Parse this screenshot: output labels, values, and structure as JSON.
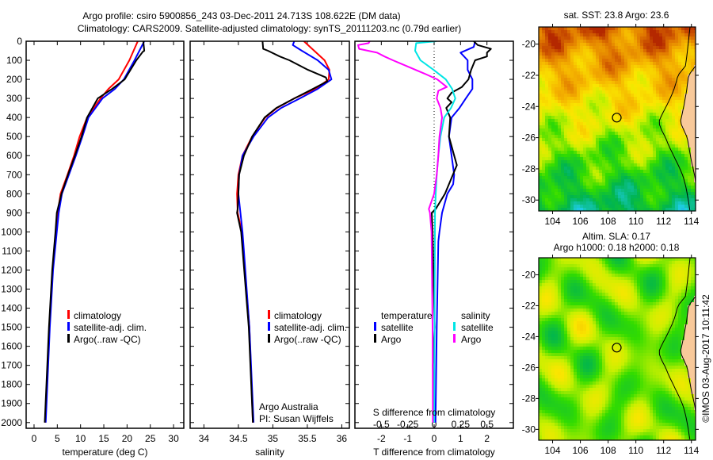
{
  "title": {
    "line1": "Argo profile: csiro 5900856_243 03-Dec-2011 24.713S 108.622E (DM data)",
    "line2": "Climatology: CARS2009. Satellite-adjusted climatology: synTS_20111203.nc (0.79d earlier)"
  },
  "colors": {
    "climatology": "#ff0000",
    "satellite": "#0000ff",
    "argo": "#000000",
    "sal_satellite": "#00e5e5",
    "sal_argo": "#ff00ff",
    "land": "#f8c99a"
  },
  "depth_axis": {
    "ticks": [
      0,
      100,
      200,
      300,
      400,
      500,
      600,
      700,
      800,
      900,
      1000,
      1100,
      1200,
      1300,
      1400,
      1500,
      1600,
      1700,
      1800,
      1900,
      2000
    ],
    "range": [
      0,
      2030
    ]
  },
  "chart_data": [
    {
      "type": "line",
      "name": "temperature",
      "xlabel": "temperature (deg C)",
      "ylabel": "depth",
      "xlim": [
        -1.7,
        32.2
      ],
      "ylim": [
        2030,
        0
      ],
      "xticks": [
        0,
        5,
        10,
        15,
        20,
        25,
        30
      ],
      "legend": {
        "climatology": "climatology",
        "satellite": "satellite-adj. clim.",
        "argo": "Argo(..raw -QC)"
      },
      "series": [
        {
          "name": "climatology",
          "color": "#ff0000",
          "depth": [
            0,
            100,
            200,
            250,
            300,
            400,
            500,
            600,
            700,
            800,
            900,
            1000,
            1200,
            1500,
            2000
          ],
          "values": [
            22.3,
            20.5,
            18.2,
            16.0,
            14.3,
            11.4,
            9.8,
            8.6,
            7.2,
            5.7,
            5.1,
            4.7,
            4.0,
            3.3,
            2.4
          ]
        },
        {
          "name": "satellite",
          "color": "#0000ff",
          "depth": [
            0,
            100,
            200,
            250,
            300,
            400,
            500,
            600,
            700,
            800,
            900,
            1000,
            1200,
            1500,
            2000
          ],
          "values": [
            23.7,
            21.6,
            19.3,
            17.4,
            14.7,
            11.7,
            10.4,
            9.0,
            7.5,
            6.0,
            5.3,
            4.9,
            4.1,
            3.4,
            2.5
          ]
        },
        {
          "name": "argo",
          "color": "#000000",
          "depth": [
            0,
            50,
            55,
            100,
            200,
            250,
            300,
            400,
            500,
            600,
            700,
            800,
            900,
            1000,
            1200,
            1500,
            2000
          ],
          "values": [
            23.5,
            23.7,
            23.4,
            22.0,
            19.5,
            16.8,
            13.7,
            11.4,
            10.2,
            8.8,
            7.3,
            5.9,
            4.9,
            4.6,
            3.9,
            3.2,
            2.3
          ]
        }
      ]
    },
    {
      "type": "line",
      "name": "salinity",
      "xlabel": "salinity",
      "ylabel": "depth",
      "xlim": [
        33.8,
        36.11
      ],
      "ylim": [
        2030,
        0
      ],
      "xticks": [
        34,
        34.5,
        35,
        35.5,
        36
      ],
      "legend": {
        "climatology": "climatology",
        "satellite": "satellite-adj. clim.",
        "argo": "Argo(..raw -QC)"
      },
      "credit": {
        "line1": "Argo Australia",
        "line2": "PI: Susan Wijffels"
      },
      "series": [
        {
          "name": "climatology",
          "color": "#ff0000",
          "depth": [
            0,
            100,
            150,
            200,
            250,
            300,
            350,
            400,
            500,
            600,
            700,
            800,
            900,
            1000,
            1500,
            2000
          ],
          "values": [
            35.45,
            35.75,
            35.82,
            35.81,
            35.62,
            35.31,
            35.06,
            34.89,
            34.7,
            34.56,
            34.5,
            34.48,
            34.49,
            34.55,
            34.66,
            34.71
          ]
        },
        {
          "name": "satellite",
          "color": "#0000ff",
          "depth": [
            0,
            20,
            50,
            100,
            150,
            200,
            250,
            300,
            350,
            400,
            500,
            600,
            700,
            800,
            900,
            1000,
            1100,
            1500,
            2000
          ],
          "values": [
            35.31,
            35.29,
            35.42,
            35.65,
            35.81,
            35.85,
            35.65,
            35.39,
            35.12,
            34.93,
            34.72,
            34.56,
            34.51,
            34.5,
            34.53,
            34.56,
            34.58,
            34.66,
            34.72
          ]
        },
        {
          "name": "argo",
          "color": "#000000",
          "depth": [
            0,
            40,
            50,
            80,
            100,
            150,
            190,
            210,
            250,
            300,
            350,
            400,
            500,
            600,
            700,
            800,
            880,
            900,
            950,
            1000,
            1500,
            2000
          ],
          "values": [
            34.85,
            34.86,
            34.93,
            35.1,
            35.24,
            35.51,
            35.77,
            35.79,
            35.58,
            35.31,
            35.05,
            34.88,
            34.7,
            34.58,
            34.51,
            34.5,
            34.49,
            34.48,
            34.51,
            34.54,
            34.65,
            34.71
          ]
        }
      ]
    },
    {
      "type": "line",
      "name": "difference",
      "xlabel": "T difference from climatology",
      "x2label": "S difference from climatology",
      "ylabel": "depth",
      "xlim": [
        -3,
        3
      ],
      "ylim": [
        2030,
        0
      ],
      "xticks": [
        -2,
        -1,
        0,
        1,
        2
      ],
      "x2ticks": [
        "-0.5",
        "-0.25",
        "0",
        "0.25",
        "0.5"
      ],
      "x2scale": 4,
      "legend": {
        "temperature": "temperature",
        "salinity": "salinity",
        "satellite": "satellite",
        "argo": "Argo"
      },
      "series": [
        {
          "name": "T satellite",
          "color": "#0000ff",
          "depth": [
            0,
            30,
            60,
            100,
            150,
            200,
            250,
            300,
            350,
            400,
            500,
            600,
            700,
            750,
            800,
            900,
            1000,
            1050,
            1500,
            2000
          ],
          "values": [
            1.55,
            1.5,
            1.0,
            1.27,
            1.27,
            1.45,
            1.45,
            1.2,
            0.96,
            0.66,
            0.56,
            0.66,
            0.76,
            0.72,
            0.5,
            0.3,
            0.2,
            0.16,
            0.1,
            0.05
          ]
        },
        {
          "name": "T Argo",
          "color": "#000000",
          "depth": [
            0,
            20,
            40,
            60,
            80,
            100,
            150,
            200,
            240,
            270,
            300,
            320,
            350,
            400,
            500,
            600,
            650,
            700,
            800,
            880,
            900,
            1000,
            1500,
            1700,
            2000
          ],
          "values": [
            1.5,
            1.65,
            2.15,
            2.0,
            2.0,
            1.55,
            1.4,
            1.3,
            1.05,
            0.66,
            0.5,
            0.66,
            0.46,
            0.61,
            0.56,
            0.76,
            0.86,
            0.71,
            0.41,
            0.06,
            -0.09,
            -0.06,
            0.02,
            -0.05,
            0.0
          ]
        },
        {
          "name": "S satellite",
          "color": "#00e5e5",
          "depth": [
            0,
            10,
            50,
            100,
            150,
            200,
            250,
            300,
            350,
            400,
            500,
            600,
            700,
            800,
            900,
            2000
          ],
          "values": [
            0.02,
            -0.17,
            -0.18,
            -0.13,
            -0.005,
            0.11,
            0.17,
            0.2,
            0.16,
            0.095,
            0.06,
            0.04,
            0.025,
            0.015,
            0.008,
            0.0
          ]
        },
        {
          "name": "S Argo",
          "color": "#ff00ff",
          "depth": [
            0,
            10,
            20,
            40,
            60,
            80,
            100,
            130,
            170,
            200,
            240,
            260,
            300,
            350,
            400,
            500,
            600,
            700,
            800,
            880,
            900,
            1000,
            1500,
            2000
          ],
          "values": [
            -0.61,
            -0.62,
            -0.72,
            -0.71,
            -0.54,
            -0.47,
            -0.39,
            -0.26,
            -0.09,
            0.03,
            0.12,
            0.04,
            0.025,
            0.06,
            0.075,
            0.05,
            0.04,
            0.025,
            0.0,
            -0.05,
            -0.04,
            -0.025,
            -0.015,
            -0.012
          ]
        }
      ]
    },
    {
      "type": "heatmap",
      "name": "sst-map",
      "title": "sat. SST: 23.8 Argo: 23.6",
      "lon_range": [
        103,
        114.3
      ],
      "lat_range": [
        -30.7,
        -18.9
      ],
      "xticks": [
        104,
        106,
        108,
        110,
        112,
        114
      ],
      "yticks": [
        -20,
        -22,
        -24,
        -26,
        -28,
        -30
      ],
      "argo_position": [
        108.622,
        -24.713
      ]
    },
    {
      "type": "heatmap",
      "name": "sla-map",
      "title": "Altim. SLA: 0.17",
      "subtitle": "Argo h1000: 0.18 h2000: 0.18",
      "lon_range": [
        103,
        114.3
      ],
      "lat_range": [
        -30.7,
        -18.9
      ],
      "xticks": [
        104,
        106,
        108,
        110,
        112,
        114
      ],
      "yticks": [
        -20,
        -22,
        -24,
        -26,
        -28,
        -30
      ],
      "argo_position": [
        108.622,
        -24.713
      ]
    }
  ],
  "footer": {
    "credit": "©IMOS 03-Aug-2017 10:11:42"
  }
}
